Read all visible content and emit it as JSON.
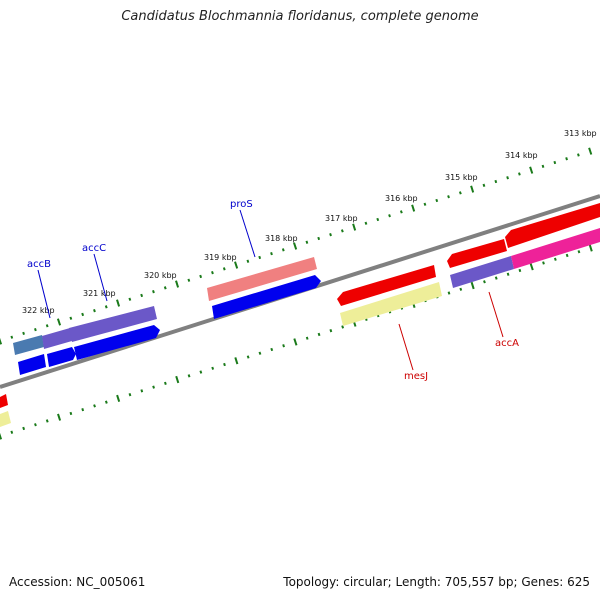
{
  "title": "Candidatus Blochmannia floridanus, complete genome",
  "footer": {
    "accession": "Accession: NC_005061",
    "summary": "Topology: circular; Length: 705,557 bp; Genes: 625"
  },
  "colors": {
    "backbone": "#808080",
    "ticks": "#1a7a1a",
    "label_forward": "#0000cc",
    "label_reverse": "#cc0000"
  },
  "tick_labels": [
    "313 kbp",
    "314 kbp",
    "315 kbp",
    "316 kbp",
    "317 kbp",
    "318 kbp",
    "319 kbp",
    "320 kbp",
    "321 kbp",
    "322 kbp"
  ],
  "gene_labels": {
    "accB": "accB",
    "accC": "accC",
    "proS": "proS",
    "mesJ": "mesJ",
    "accA": "accA"
  }
}
